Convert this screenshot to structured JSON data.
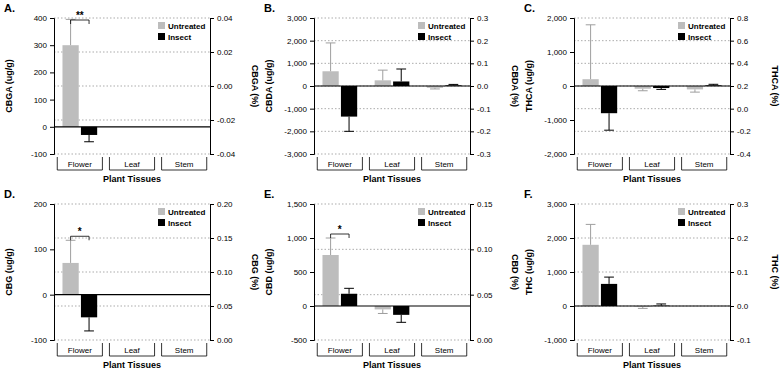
{
  "chart_data": [
    {
      "type": "bar",
      "title": "A.",
      "y_label": "CBGA (ug/g)",
      "y2_label": "CBGA (%)",
      "x_label": "Plant Tissues",
      "categories": [
        "Flower",
        "Leaf",
        "Stem"
      ],
      "series": [
        {
          "name": "Untreated",
          "color": "#bdbdbd",
          "values": [
            300,
            null,
            null
          ],
          "errors": [
            95,
            null,
            null
          ]
        },
        {
          "name": "Insect",
          "color": "#000000",
          "values": [
            -30,
            null,
            null
          ],
          "errors": [
            25,
            null,
            null
          ]
        }
      ],
      "ylim": [
        -100,
        400
      ],
      "yticks": [
        -100,
        0,
        100,
        200,
        300,
        400
      ],
      "y2lim": [
        -0.04,
        0.04
      ],
      "y2ticks": [
        -0.04,
        -0.02,
        {
          "value": 0,
          "label": "0.00"
        },
        0.02,
        0.04
      ],
      "grid": true,
      "legend": "upper right",
      "annotations": [
        {
          "text": "**",
          "category": 0
        }
      ]
    },
    {
      "type": "bar",
      "title": "B.",
      "y_label": "CBDA (ug/g)",
      "y2_label": "CBDA (%)",
      "x_label": "Plant Tissues",
      "categories": [
        "Flower",
        "Leaf",
        "Stem"
      ],
      "series": [
        {
          "name": "Untreated",
          "color": "#bdbdbd",
          "values": [
            650,
            250,
            -80
          ],
          "errors": [
            1250,
            450,
            50
          ]
        },
        {
          "name": "Insect",
          "color": "#000000",
          "values": [
            -1350,
            200,
            30
          ],
          "errors": [
            650,
            550,
            40
          ]
        }
      ],
      "ylim": [
        -3000,
        3000
      ],
      "yticks": [
        {
          "value": -3000,
          "label": "-3,000"
        },
        {
          "value": -2000,
          "label": "-2,000"
        },
        {
          "value": -1000,
          "label": "-1,000"
        },
        0,
        {
          "value": 1000,
          "label": "1,000"
        },
        {
          "value": 2000,
          "label": "2,000"
        },
        {
          "value": 3000,
          "label": "3,000"
        }
      ],
      "y2lim": [
        -0.3,
        0.3
      ],
      "y2ticks": [
        -0.3,
        -0.2,
        -0.1,
        {
          "value": 0,
          "label": "0.0"
        },
        0.1,
        0.2,
        0.3
      ],
      "grid": true,
      "legend": "upper right"
    },
    {
      "type": "bar",
      "title": "C.",
      "y_label": "THCA (ug/g)",
      "y2_label": "THCA (%)",
      "x_label": "Plant Tissues",
      "categories": [
        "Flower",
        "Leaf",
        "Stem"
      ],
      "series": [
        {
          "name": "Untreated",
          "color": "#bdbdbd",
          "values": [
            200,
            -80,
            -100
          ],
          "errors": [
            1600,
            60,
            80
          ]
        },
        {
          "name": "Insect",
          "color": "#000000",
          "values": [
            -800,
            -60,
            20
          ],
          "errors": [
            500,
            40,
            30
          ]
        }
      ],
      "ylim": [
        -2000,
        2000
      ],
      "yticks": [
        {
          "value": -2000,
          "label": "-2,000"
        },
        {
          "value": -1000,
          "label": "-1,000"
        },
        0,
        {
          "value": 1000,
          "label": "1,000"
        },
        {
          "value": 2000,
          "label": "2,000"
        }
      ],
      "y2lim": [
        -0.4,
        0.8
      ],
      "y2ticks": [
        -0.4,
        -0.2,
        {
          "value": 0,
          "label": "0.0"
        },
        0.2,
        0.4,
        0.6,
        0.8
      ],
      "grid": true,
      "legend": "upper right"
    },
    {
      "type": "bar",
      "title": "D.",
      "y_label": "CBG (ug/g)",
      "y2_label": "CBG (%)",
      "x_label": "Plant Tissues",
      "categories": [
        "Flower",
        "Leaf",
        "Stem"
      ],
      "series": [
        {
          "name": "Untreated",
          "color": "#bdbdbd",
          "values": [
            70,
            null,
            null
          ],
          "errors": [
            50,
            null,
            null
          ]
        },
        {
          "name": "Insect",
          "color": "#000000",
          "values": [
            -50,
            null,
            null
          ],
          "errors": [
            30,
            null,
            null
          ]
        }
      ],
      "ylim": [
        -100,
        200
      ],
      "yticks": [
        -100,
        0,
        100,
        200
      ],
      "y2lim": [
        0,
        0.2
      ],
      "y2ticks": [
        {
          "value": 0,
          "label": "0.00"
        },
        0.05,
        {
          "value": 0.1,
          "label": "0.10"
        },
        0.15,
        {
          "value": 0.2,
          "label": "0.20"
        }
      ],
      "grid": true,
      "legend": "upper right",
      "annotations": [
        {
          "text": "*",
          "category": 0
        }
      ]
    },
    {
      "type": "bar",
      "title": "E.",
      "y_label": "CBD (ug/g)",
      "y2_label": "CBD (%)",
      "x_label": "Plant Tissues",
      "categories": [
        "Flower",
        "Leaf",
        "Stem"
      ],
      "series": [
        {
          "name": "Untreated",
          "color": "#bdbdbd",
          "values": [
            750,
            -50,
            null
          ],
          "errors": [
            250,
            60,
            null
          ]
        },
        {
          "name": "Insect",
          "color": "#000000",
          "values": [
            180,
            -130,
            null
          ],
          "errors": [
            80,
            110,
            null
          ]
        }
      ],
      "ylim": [
        -500,
        1500
      ],
      "yticks": [
        -500,
        0,
        500,
        {
          "value": 1000,
          "label": "1,000"
        },
        {
          "value": 1500,
          "label": "1,500"
        }
      ],
      "y2lim": [
        0,
        0.15
      ],
      "y2ticks": [
        {
          "value": 0,
          "label": "0.00"
        },
        0.05,
        {
          "value": 0.1,
          "label": "0.10"
        },
        0.15
      ],
      "grid": true,
      "legend": "upper right",
      "annotations": [
        {
          "text": "*",
          "category": 0
        }
      ]
    },
    {
      "type": "bar",
      "title": "F.",
      "y_label": "THC (ug/g)",
      "y2_label": "THC (%)",
      "x_label": "Plant Tissues",
      "categories": [
        "Flower",
        "Leaf",
        "Stem"
      ],
      "series": [
        {
          "name": "Untreated",
          "color": "#bdbdbd",
          "values": [
            1800,
            -20,
            null
          ],
          "errors": [
            600,
            50,
            null
          ]
        },
        {
          "name": "Insect",
          "color": "#000000",
          "values": [
            650,
            10,
            null
          ],
          "errors": [
            200,
            50,
            null
          ]
        }
      ],
      "ylim": [
        -1000,
        3000
      ],
      "yticks": [
        {
          "value": -1000,
          "label": "-1,000"
        },
        0,
        {
          "value": 1000,
          "label": "1,000"
        },
        {
          "value": 2000,
          "label": "2,000"
        },
        {
          "value": 3000,
          "label": "3,000"
        }
      ],
      "y2lim": [
        -0.1,
        0.3
      ],
      "y2ticks": [
        -0.1,
        {
          "value": 0,
          "label": "0.0"
        },
        0.1,
        0.2,
        0.3
      ],
      "grid": true,
      "legend": "upper right"
    }
  ]
}
